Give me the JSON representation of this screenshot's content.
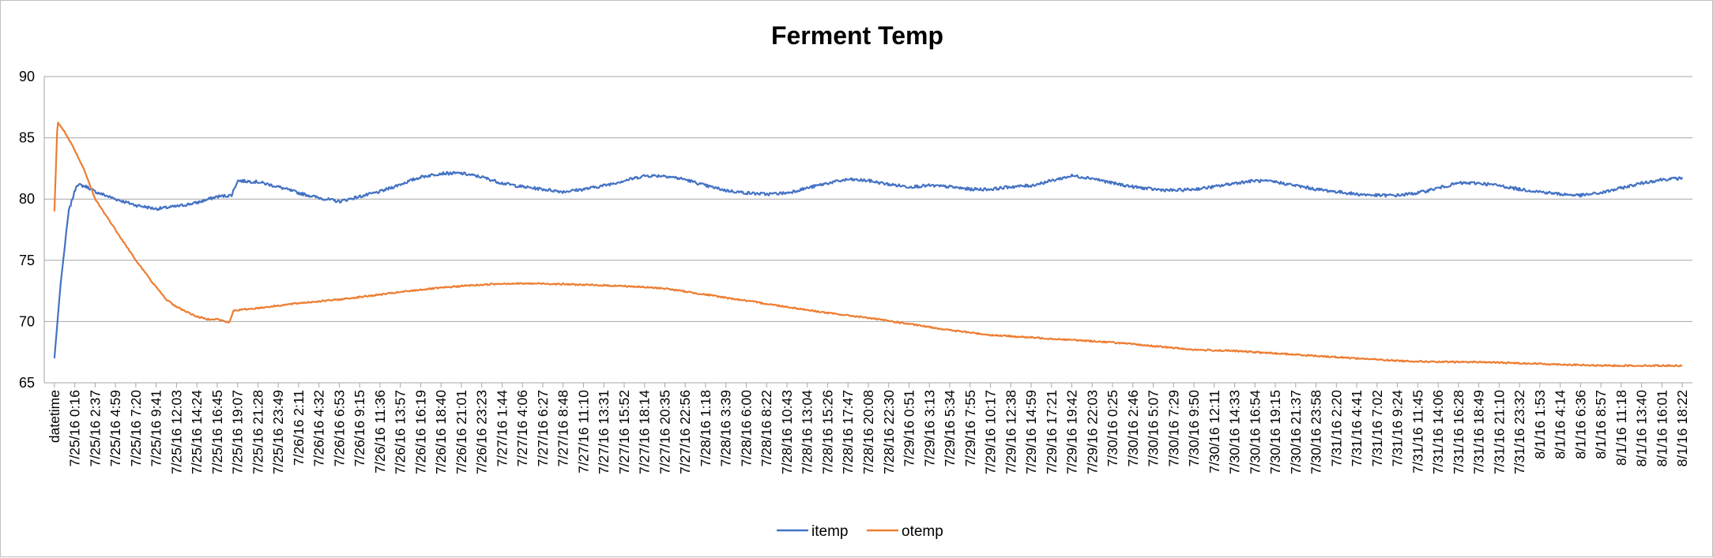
{
  "chart_data": {
    "type": "line",
    "title": "Ferment Temp",
    "xlabel": "",
    "ylabel": "",
    "ylim": [
      65,
      90
    ],
    "yticks": [
      "65",
      "70",
      "75",
      "80",
      "85",
      "90"
    ],
    "grid": "horizontal",
    "legend_position": "bottom",
    "x_tick_labels": [
      "datetime",
      "7/25/16  0:16",
      "7/25/16  2:37",
      "7/25/16  4:59",
      "7/25/16  7:20",
      "7/25/16  9:41",
      "7/25/16  12:03",
      "7/25/16  14:24",
      "7/25/16  16:45",
      "7/25/16  19:07",
      "7/25/16  21:28",
      "7/25/16  23:49",
      "7/26/16  2:11",
      "7/26/16  4:32",
      "7/26/16  6:53",
      "7/26/16  9:15",
      "7/26/16  11:36",
      "7/26/16  13:57",
      "7/26/16  16:19",
      "7/26/16  18:40",
      "7/26/16  21:01",
      "7/26/16  23:23",
      "7/27/16  1:44",
      "7/27/16  4:06",
      "7/27/16  6:27",
      "7/27/16  8:48",
      "7/27/16  11:10",
      "7/27/16  13:31",
      "7/27/16  15:52",
      "7/27/16  18:14",
      "7/27/16  20:35",
      "7/27/16  22:56",
      "7/28/16  1:18",
      "7/28/16  3:39",
      "7/28/16  6:00",
      "7/28/16  8:22",
      "7/28/16  10:43",
      "7/28/16  13:04",
      "7/28/16  15:26",
      "7/28/16  17:47",
      "7/28/16 20:08",
      "7/28/16  22:30",
      "7/29/16  0:51",
      "7/29/16  3:13",
      "7/29/16  5:34",
      "7/29/16  7:55",
      "7/29/16  10:17",
      "7/29/16  12:38",
      "7/29/16  14:59",
      "7/29/16  17:21",
      "7/29/16  19:42",
      "7/29/16  22:03",
      "7/30/16  0:25",
      "7/30/16  2:46",
      "7/30/16  5:07",
      "7/30/16  7:29",
      "7/30/16  9:50",
      "7/30/16  12:11",
      "7/30/16  14:33",
      "7/30/16  16:54",
      "7/30/16  19:15",
      "7/30/16  21:37",
      "7/30/16  23:58",
      "7/31/16  2:20",
      "7/31/16  4:41",
      "7/31/16  7:02",
      "7/31/16  9:24",
      "7/31/16  11:45",
      "7/31/16  14:06",
      "7/31/16  16:28",
      "7/31/16  18:49",
      "7/31/16  21:10",
      "7/31/16  23:32",
      "8/1/16  1:53",
      "8/1/16  4:14",
      "8/1/16  6:36",
      "8/1/16  8:57",
      "8/1/16  11:18",
      "8/1/16  13:40",
      "8/1/16  16:01",
      "8/1/16  18:22"
    ],
    "series": [
      {
        "name": "itemp",
        "color": "#4472c4",
        "noise": 0.12,
        "points": [
          [
            0,
            67
          ],
          [
            0.3,
            73
          ],
          [
            0.7,
            79
          ],
          [
            1.1,
            81.2
          ],
          [
            1.6,
            81
          ],
          [
            2,
            80.6
          ],
          [
            3,
            80
          ],
          [
            4,
            79.5
          ],
          [
            5,
            79.2
          ],
          [
            6,
            79.4
          ],
          [
            7,
            79.7
          ],
          [
            8,
            80.2
          ],
          [
            8.7,
            80.3
          ],
          [
            9,
            81.5
          ],
          [
            10,
            81.4
          ],
          [
            11,
            81
          ],
          [
            12,
            80.5
          ],
          [
            13,
            80.1
          ],
          [
            14,
            79.8
          ],
          [
            15,
            80.2
          ],
          [
            16,
            80.6
          ],
          [
            17,
            81.2
          ],
          [
            18,
            81.8
          ],
          [
            19,
            82.1
          ],
          [
            20,
            82.1
          ],
          [
            21,
            81.8
          ],
          [
            22,
            81.3
          ],
          [
            23,
            81
          ],
          [
            24,
            80.8
          ],
          [
            25,
            80.6
          ],
          [
            26,
            80.8
          ],
          [
            27,
            81.1
          ],
          [
            28,
            81.5
          ],
          [
            29,
            81.9
          ],
          [
            30,
            81.9
          ],
          [
            31,
            81.6
          ],
          [
            32,
            81.1
          ],
          [
            33,
            80.7
          ],
          [
            34,
            80.5
          ],
          [
            35,
            80.4
          ],
          [
            36,
            80.5
          ],
          [
            37,
            80.9
          ],
          [
            38,
            81.3
          ],
          [
            39,
            81.6
          ],
          [
            40,
            81.5
          ],
          [
            41,
            81.2
          ],
          [
            42,
            81
          ],
          [
            43,
            81.1
          ],
          [
            44,
            81
          ],
          [
            45,
            80.8
          ],
          [
            46,
            80.8
          ],
          [
            47,
            81
          ],
          [
            48,
            81.1
          ],
          [
            49,
            81.5
          ],
          [
            50,
            81.9
          ],
          [
            51,
            81.7
          ],
          [
            52,
            81.3
          ],
          [
            53,
            81
          ],
          [
            54,
            80.8
          ],
          [
            55,
            80.7
          ],
          [
            56,
            80.8
          ],
          [
            57,
            81
          ],
          [
            58,
            81.3
          ],
          [
            59,
            81.5
          ],
          [
            60,
            81.4
          ],
          [
            61,
            81.1
          ],
          [
            62,
            80.8
          ],
          [
            63,
            80.6
          ],
          [
            64,
            80.4
          ],
          [
            65,
            80.3
          ],
          [
            66,
            80.3
          ],
          [
            67,
            80.5
          ],
          [
            68,
            80.9
          ],
          [
            69,
            81.3
          ],
          [
            70,
            81.3
          ],
          [
            71,
            81.1
          ],
          [
            72,
            80.8
          ],
          [
            73,
            80.6
          ],
          [
            74,
            80.4
          ],
          [
            75,
            80.3
          ],
          [
            76,
            80.5
          ],
          [
            77,
            80.9
          ],
          [
            78,
            81.3
          ],
          [
            79,
            81.6
          ],
          [
            80,
            81.7
          ]
        ]
      },
      {
        "name": "otemp",
        "color": "#ed7d31",
        "noise": 0.06,
        "points": [
          [
            0,
            79
          ],
          [
            0.15,
            86.3
          ],
          [
            0.5,
            85.5
          ],
          [
            1,
            84
          ],
          [
            1.5,
            82.2
          ],
          [
            2,
            80
          ],
          [
            3,
            77.5
          ],
          [
            4,
            75
          ],
          [
            5,
            72.8
          ],
          [
            5.5,
            71.8
          ],
          [
            6,
            71.2
          ],
          [
            6.5,
            70.8
          ],
          [
            7,
            70.4
          ],
          [
            7.5,
            70.2
          ],
          [
            8,
            70.2
          ],
          [
            8.6,
            69.9
          ],
          [
            8.8,
            70.9
          ],
          [
            10,
            71.1
          ],
          [
            12,
            71.5
          ],
          [
            14,
            71.8
          ],
          [
            16,
            72.2
          ],
          [
            18,
            72.6
          ],
          [
            20,
            72.9
          ],
          [
            22,
            73.1
          ],
          [
            24,
            73.1
          ],
          [
            26,
            73
          ],
          [
            28,
            72.9
          ],
          [
            30,
            72.7
          ],
          [
            32,
            72.2
          ],
          [
            34,
            71.7
          ],
          [
            36,
            71.2
          ],
          [
            38,
            70.7
          ],
          [
            40,
            70.3
          ],
          [
            42,
            69.8
          ],
          [
            44,
            69.3
          ],
          [
            46,
            68.9
          ],
          [
            48,
            68.7
          ],
          [
            50,
            68.5
          ],
          [
            52,
            68.3
          ],
          [
            54,
            68
          ],
          [
            56,
            67.7
          ],
          [
            58,
            67.6
          ],
          [
            60,
            67.4
          ],
          [
            62,
            67.2
          ],
          [
            64,
            67
          ],
          [
            66,
            66.8
          ],
          [
            68,
            66.7
          ],
          [
            70,
            66.7
          ],
          [
            72,
            66.6
          ],
          [
            74,
            66.5
          ],
          [
            76,
            66.4
          ],
          [
            78,
            66.4
          ],
          [
            80,
            66.4
          ]
        ]
      }
    ]
  }
}
